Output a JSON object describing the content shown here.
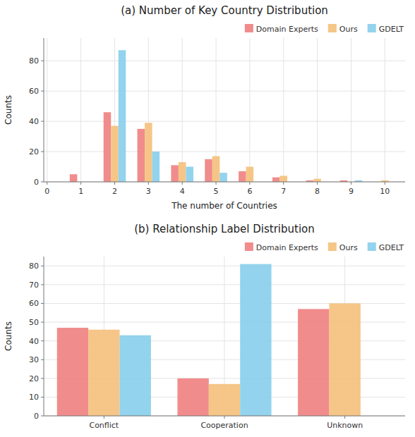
{
  "chart_data": [
    {
      "type": "bar",
      "title": "(a) Number of Key Country Distribution",
      "xlabel": "The number of Countries",
      "ylabel": "Counts",
      "x": [
        1,
        2,
        3,
        4,
        5,
        6,
        7,
        8,
        9,
        10
      ],
      "xlim": [
        -0.1,
        10.6
      ],
      "xticks": [
        0,
        1,
        2,
        3,
        4,
        5,
        6,
        7,
        8,
        9,
        10
      ],
      "ylim": [
        0,
        95
      ],
      "yticks": [
        0,
        20,
        40,
        60,
        80
      ],
      "grid": true,
      "legend": "upper-right",
      "series": [
        {
          "name": "Domain Experts",
          "color": "#F08080",
          "values": [
            5,
            46,
            35,
            11,
            15,
            7,
            3,
            1,
            1,
            0
          ]
        },
        {
          "name": "Ours",
          "color": "#F4C07A",
          "values": [
            0,
            37,
            39,
            13,
            17,
            10,
            4,
            2,
            0,
            1
          ]
        },
        {
          "name": "GDELT",
          "color": "#87CEEB",
          "values": [
            0,
            87,
            20,
            10,
            6,
            0,
            0,
            0,
            1,
            0
          ]
        }
      ]
    },
    {
      "type": "bar",
      "title": "(b) Relationship Label Distribution",
      "ylabel": "Counts",
      "categories": [
        "Conflict",
        "Cooperation",
        "Unknown"
      ],
      "ylim": [
        0,
        85
      ],
      "yticks": [
        0,
        10,
        20,
        30,
        40,
        50,
        60,
        70,
        80
      ],
      "grid": true,
      "legend": "upper-right",
      "series": [
        {
          "name": "Domain Experts",
          "color": "#F08080",
          "values": [
            47,
            20,
            57
          ]
        },
        {
          "name": "Ours",
          "color": "#F4C07A",
          "values": [
            46,
            17,
            60
          ]
        },
        {
          "name": "GDELT",
          "color": "#87CEEB",
          "values": [
            43,
            81,
            0
          ]
        }
      ]
    }
  ]
}
